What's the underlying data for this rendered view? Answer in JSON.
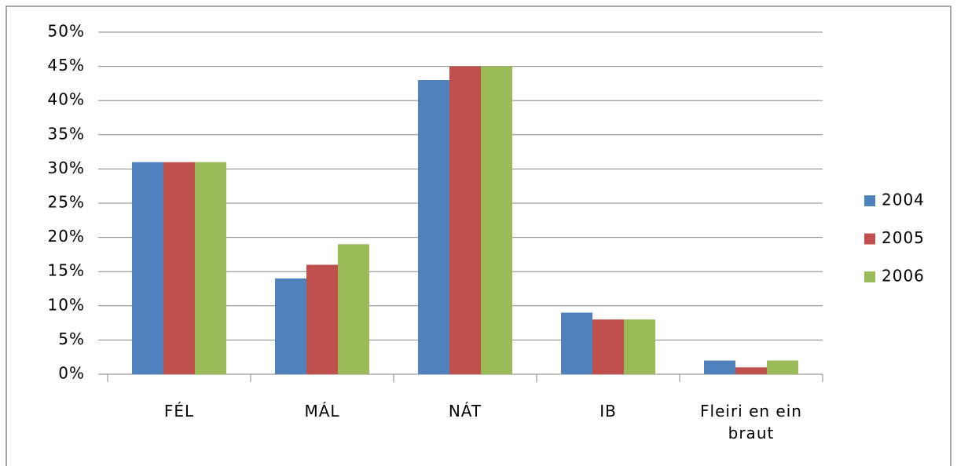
{
  "chart_data": {
    "type": "bar",
    "categories": [
      "FÉL",
      "MÁL",
      "NÁT",
      "IB",
      "Fleiri en ein braut"
    ],
    "series": [
      {
        "name": "2004",
        "color": "#4f81bd",
        "values": [
          31,
          14,
          43,
          9,
          2
        ]
      },
      {
        "name": "2005",
        "color": "#c0504d",
        "values": [
          31,
          16,
          45,
          8,
          1
        ]
      },
      {
        "name": "2006",
        "color": "#9bbb59",
        "values": [
          31,
          19,
          45,
          8,
          2
        ]
      }
    ],
    "ylim": [
      0,
      50
    ],
    "yticks": [
      {
        "value": 0,
        "label": "0%"
      },
      {
        "value": 5,
        "label": "5%"
      },
      {
        "value": 10,
        "label": "10%"
      },
      {
        "value": 15,
        "label": "15%"
      },
      {
        "value": 20,
        "label": "20%"
      },
      {
        "value": 25,
        "label": "25%"
      },
      {
        "value": 30,
        "label": "30%"
      },
      {
        "value": 35,
        "label": "35%"
      },
      {
        "value": 40,
        "label": "40%"
      },
      {
        "value": 45,
        "label": "45%"
      },
      {
        "value": 50,
        "label": "50%"
      }
    ],
    "grid": true,
    "legend": "right"
  }
}
